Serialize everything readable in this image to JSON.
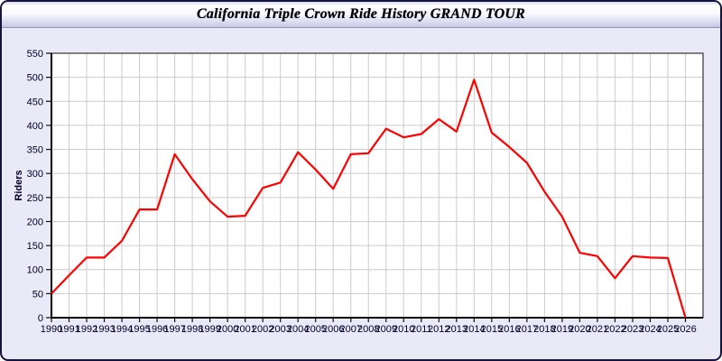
{
  "window": {
    "title": "California Triple Crown Ride History GRAND TOUR"
  },
  "colors": {
    "line": "#ff0000",
    "panel_background": "#e9e9f8",
    "plot_background": "#ffffff",
    "grid": "#cccccc",
    "axis": "#333333",
    "label_text": "#000028"
  },
  "chart_data": {
    "type": "line",
    "title": "California Triple Crown Ride History GRAND TOUR",
    "xlabel": "",
    "ylabel": "Riders",
    "grid": true,
    "legend": false,
    "xlim": [
      1990,
      2027
    ],
    "ylim": [
      0,
      550
    ],
    "ytick_step": 50,
    "x": [
      1990,
      1991,
      1992,
      1993,
      1994,
      1995,
      1996,
      1997,
      1998,
      1999,
      2000,
      2001,
      2002,
      2003,
      2004,
      2005,
      2006,
      2007,
      2008,
      2009,
      2010,
      2011,
      2012,
      2013,
      2014,
      2015,
      2016,
      2017,
      2018,
      2019,
      2020,
      2021,
      2022,
      2023,
      2024,
      2025,
      2026
    ],
    "series": [
      {
        "name": "Riders",
        "color": "#ff0000",
        "values": [
          50,
          88,
          125,
          125,
          160,
          225,
          225,
          340,
          288,
          242,
          210,
          212,
          270,
          281,
          344,
          308,
          268,
          340,
          342,
          393,
          375,
          382,
          413,
          387,
          495,
          385,
          355,
          322,
          262,
          210,
          135,
          128,
          82,
          128,
          125,
          124,
          0
        ]
      }
    ]
  }
}
